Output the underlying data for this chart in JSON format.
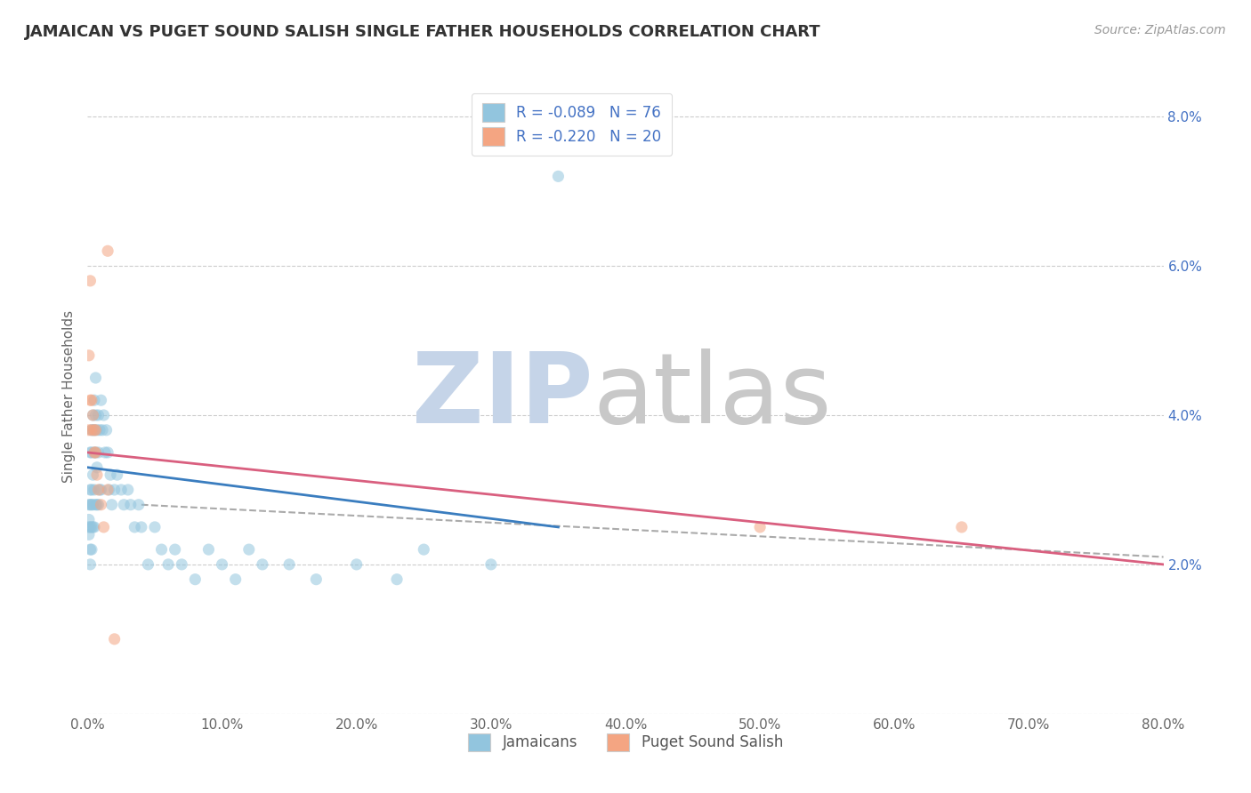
{
  "title": "JAMAICAN VS PUGET SOUND SALISH SINGLE FATHER HOUSEHOLDS CORRELATION CHART",
  "source": "Source: ZipAtlas.com",
  "ylabel": "Single Father Households",
  "xlim": [
    0.0,
    0.8
  ],
  "ylim": [
    0.0,
    0.085
  ],
  "xticks": [
    0.0,
    0.1,
    0.2,
    0.3,
    0.4,
    0.5,
    0.6,
    0.7,
    0.8
  ],
  "xticklabels": [
    "0.0%",
    "10.0%",
    "20.0%",
    "30.0%",
    "40.0%",
    "50.0%",
    "60.0%",
    "70.0%",
    "80.0%"
  ],
  "yticks": [
    0.0,
    0.02,
    0.04,
    0.06,
    0.08
  ],
  "yticklabels": [
    "",
    "2.0%",
    "4.0%",
    "6.0%",
    "8.0%"
  ],
  "blue_color": "#92c5de",
  "pink_color": "#f4a582",
  "blue_line_color": "#3a7dbf",
  "pink_line_color": "#d95f7f",
  "dash_color": "#aaaaaa",
  "legend_label1": "R = -0.089   N = 76",
  "legend_label2": "R = -0.220   N = 20",
  "legend_text_color": "#4472c4",
  "watermark_zip_color": "#c5d4e8",
  "watermark_atlas_color": "#c8c8c8",
  "jamaican_x": [
    0.001,
    0.001,
    0.001,
    0.001,
    0.002,
    0.002,
    0.002,
    0.002,
    0.002,
    0.002,
    0.003,
    0.003,
    0.003,
    0.003,
    0.003,
    0.003,
    0.004,
    0.004,
    0.004,
    0.004,
    0.004,
    0.005,
    0.005,
    0.005,
    0.005,
    0.005,
    0.006,
    0.006,
    0.006,
    0.006,
    0.007,
    0.007,
    0.007,
    0.008,
    0.008,
    0.008,
    0.009,
    0.009,
    0.01,
    0.01,
    0.011,
    0.012,
    0.013,
    0.014,
    0.015,
    0.016,
    0.017,
    0.018,
    0.02,
    0.022,
    0.025,
    0.027,
    0.03,
    0.032,
    0.035,
    0.038,
    0.04,
    0.045,
    0.05,
    0.055,
    0.06,
    0.065,
    0.07,
    0.08,
    0.09,
    0.1,
    0.11,
    0.12,
    0.13,
    0.15,
    0.17,
    0.2,
    0.23,
    0.25,
    0.3,
    0.35
  ],
  "jamaican_y": [
    0.028,
    0.026,
    0.025,
    0.024,
    0.035,
    0.03,
    0.028,
    0.025,
    0.022,
    0.02,
    0.038,
    0.035,
    0.03,
    0.028,
    0.025,
    0.022,
    0.04,
    0.038,
    0.032,
    0.028,
    0.025,
    0.042,
    0.038,
    0.035,
    0.03,
    0.025,
    0.045,
    0.04,
    0.035,
    0.028,
    0.038,
    0.033,
    0.028,
    0.04,
    0.035,
    0.028,
    0.038,
    0.03,
    0.042,
    0.03,
    0.038,
    0.04,
    0.035,
    0.038,
    0.035,
    0.03,
    0.032,
    0.028,
    0.03,
    0.032,
    0.03,
    0.028,
    0.03,
    0.028,
    0.025,
    0.028,
    0.025,
    0.02,
    0.025,
    0.022,
    0.02,
    0.022,
    0.02,
    0.018,
    0.022,
    0.02,
    0.018,
    0.022,
    0.02,
    0.02,
    0.018,
    0.02,
    0.018,
    0.022,
    0.02,
    0.072
  ],
  "salish_x": [
    0.001,
    0.001,
    0.002,
    0.002,
    0.003,
    0.003,
    0.004,
    0.005,
    0.005,
    0.006,
    0.006,
    0.007,
    0.008,
    0.01,
    0.012,
    0.015,
    0.02,
    0.5,
    0.65,
    0.015
  ],
  "salish_y": [
    0.048,
    0.038,
    0.058,
    0.042,
    0.042,
    0.038,
    0.04,
    0.038,
    0.035,
    0.038,
    0.035,
    0.032,
    0.03,
    0.028,
    0.025,
    0.03,
    0.01,
    0.025,
    0.025,
    0.062
  ],
  "blue_line": [
    [
      0.0,
      0.033
    ],
    [
      0.35,
      0.025
    ]
  ],
  "pink_line": [
    [
      0.0,
      0.035
    ],
    [
      0.8,
      0.02
    ]
  ],
  "dash_line": [
    [
      0.04,
      0.028
    ],
    [
      0.8,
      0.021
    ]
  ]
}
